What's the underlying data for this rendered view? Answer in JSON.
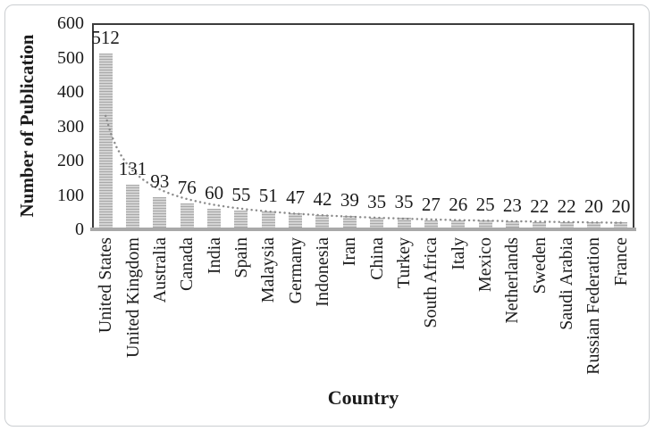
{
  "chart_data": {
    "type": "bar",
    "title": "",
    "xlabel": "Country",
    "ylabel": "Number of Publication",
    "categories": [
      "United States",
      "United Kingdom",
      "Australia",
      "Canada",
      "India",
      "Spain",
      "Malaysia",
      "Germany",
      "Indonesia",
      "Iran",
      "China",
      "Turkey",
      "South Africa",
      "Italy",
      "Mexico",
      "Netherlands",
      "Sweden",
      "Saudi Arabia",
      "Russian Federation",
      "France"
    ],
    "values": [
      512,
      131,
      93,
      76,
      60,
      55,
      51,
      47,
      42,
      39,
      35,
      35,
      27,
      26,
      25,
      23,
      22,
      22,
      20,
      20
    ],
    "ylim": [
      0,
      600
    ],
    "yticks": [
      0,
      100,
      200,
      300,
      400,
      500,
      600
    ],
    "grid": false,
    "legend": "none",
    "data_labels": true,
    "bar_style": "horizontal-stripe-pattern",
    "trendline": {
      "type": "power",
      "a": 330,
      "b": -0.95,
      "style": "dotted"
    }
  },
  "colors": {
    "bar_base": "#d3d3d3",
    "bar_stripe": "#a9a9a9",
    "axis_line": "#a9a9a9",
    "plot_border": "#3c3c3c",
    "trendline": "#8a8a8a",
    "text": "#1b1b1b",
    "frame_border": "#cbced1",
    "background": "#ffffff"
  }
}
